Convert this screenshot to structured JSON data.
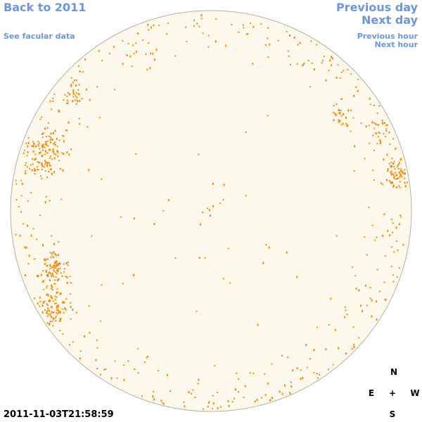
{
  "nav": {
    "back": "Back to 2011",
    "facular": "See facular data",
    "previous_day": "Previous day",
    "next_day": "Next day",
    "previous_hour": "Previous hour",
    "next_hour": "Next hour"
  },
  "timestamp": "2011-11-03T21:58:59",
  "compass": {
    "north": "N",
    "east": "E",
    "center": "+",
    "west": "W",
    "south": "S"
  }
}
